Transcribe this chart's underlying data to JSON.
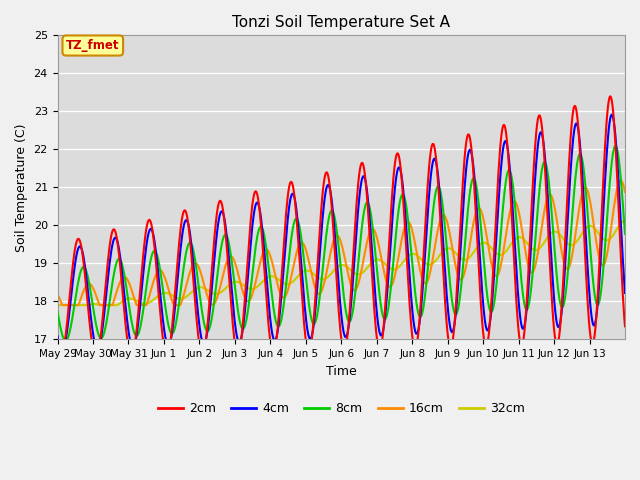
{
  "title": "Tonzi Soil Temperature Set A",
  "xlabel": "Time",
  "ylabel": "Soil Temperature (C)",
  "ylim": [
    17.0,
    25.0
  ],
  "yticks": [
    17.0,
    18.0,
    19.0,
    20.0,
    21.0,
    22.0,
    23.0,
    24.0,
    25.0
  ],
  "xtick_labels": [
    "May 29",
    "May 30",
    "May 31",
    "Jun 1",
    "Jun 2",
    "Jun 3",
    "Jun 4",
    "Jun 5",
    "Jun 6",
    "Jun 7",
    "Jun 8",
    "Jun 9",
    "Jun 10",
    "Jun 11",
    "Jun 12",
    "Jun 13"
  ],
  "legend_labels": [
    "2cm",
    "4cm",
    "8cm",
    "16cm",
    "32cm"
  ],
  "legend_colors": [
    "#ff0000",
    "#0000ff",
    "#00cc00",
    "#ff8c00",
    "#cccc00"
  ],
  "annotation_text": "TZ_fmet",
  "annotation_bg": "#ffff99",
  "annotation_border": "#cc8800",
  "line_width": 1.5,
  "fig_bg": "#f0f0f0",
  "plot_bg": "#dcdcdc"
}
